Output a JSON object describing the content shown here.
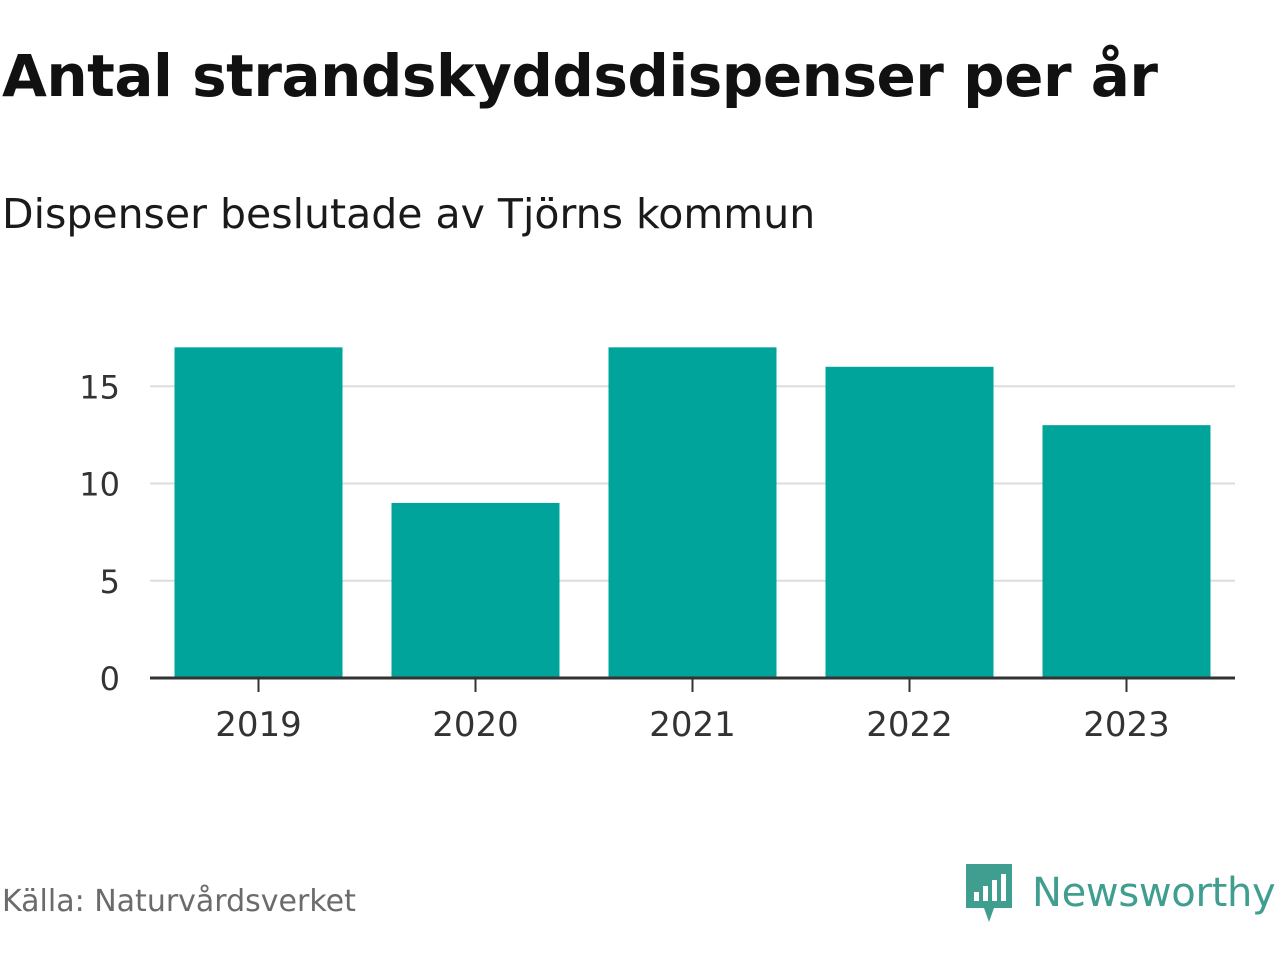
{
  "chart_data": {
    "type": "bar",
    "title": "Antal strandskyddsdispenser per år",
    "subtitle": "Dispenser beslutade av Tjörns kommun",
    "categories": [
      "2019",
      "2020",
      "2021",
      "2022",
      "2023"
    ],
    "values": [
      17,
      9,
      17,
      16,
      13
    ],
    "yticks": [
      0,
      5,
      10,
      15
    ],
    "ylim": [
      0,
      17
    ],
    "xlabel": "",
    "ylabel": "",
    "grid": true,
    "bar_color": "#00a49a"
  },
  "footer": {
    "source": "Källa: Naturvårdsverket",
    "brand": "Newsworthy"
  },
  "colors": {
    "brand": "#3f9e8f",
    "grid": "#dddddd",
    "axis": "#333333"
  },
  "icons": {
    "brand_logo": "newsworthy-logo-icon"
  }
}
